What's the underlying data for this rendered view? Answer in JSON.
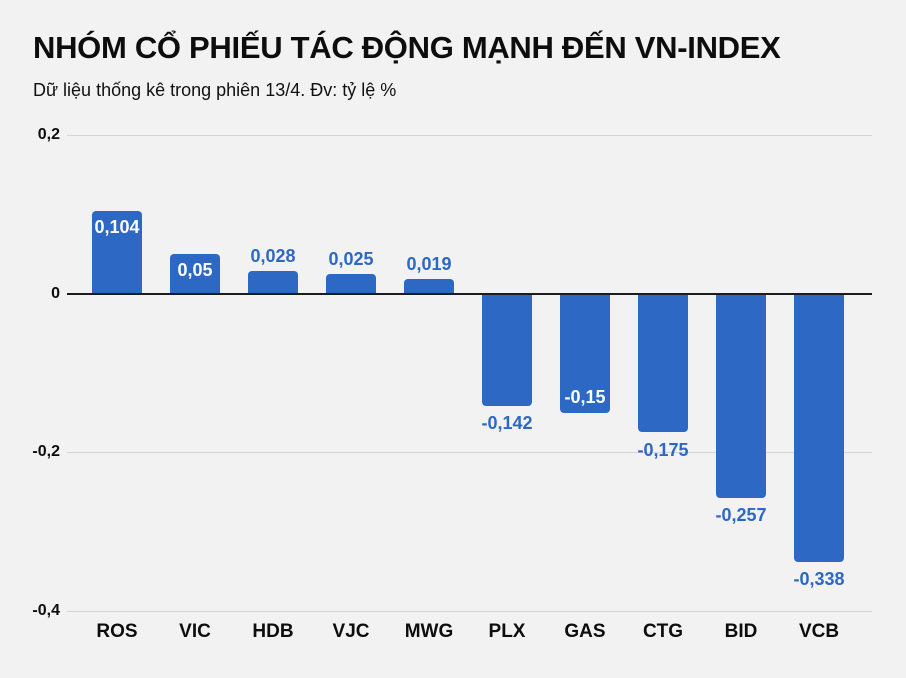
{
  "header": {
    "title": "NHÓM CỔ PHIẾU TÁC ĐỘNG MẠNH ĐẾN VN-INDEX",
    "subtitle": "Dữ liệu thống kê trong phiên 13/4. Đv: tỷ lệ %"
  },
  "colors": {
    "background": "#f2f2f2",
    "bar": "#2d68c5",
    "label_inside": "#ffffff",
    "label_outside": "#2d68c5",
    "gridline": "#d5d5d5",
    "zero_axis": "#1c1c1c",
    "text": "#0d0d0d"
  },
  "chart_data": {
    "type": "bar",
    "title": "NHÓM CỔ PHIẾU TÁC ĐỘNG MẠNH ĐẾN VN-INDEX",
    "subtitle": "Dữ liệu thống kê trong phiên 13/4. Đv: tỷ lệ %",
    "unit": "tỷ lệ %",
    "categories": [
      "ROS",
      "VIC",
      "HDB",
      "VJC",
      "MWG",
      "PLX",
      "GAS",
      "CTG",
      "BID",
      "VCB"
    ],
    "values": [
      0.104,
      0.05,
      0.028,
      0.025,
      0.019,
      -0.142,
      -0.15,
      -0.175,
      -0.257,
      -0.338
    ],
    "value_labels": [
      "0,104",
      "0,05",
      "0,028",
      "0,025",
      "0,019",
      "-0,142",
      "-0,15",
      "-0,175",
      "-0,257",
      "-0,338"
    ],
    "label_placement": [
      "inside",
      "inside",
      "outside",
      "outside",
      "outside",
      "outside",
      "inside",
      "outside",
      "outside",
      "outside"
    ],
    "ylim": [
      -0.4,
      0.2
    ],
    "y_ticks": [
      {
        "value": 0.2,
        "label": "0,2"
      },
      {
        "value": 0,
        "label": "0"
      },
      {
        "value": -0.2,
        "label": "-0,2"
      },
      {
        "value": -0.4,
        "label": "-0,4"
      }
    ],
    "grid": true,
    "legend": false,
    "xlabel": "",
    "ylabel": ""
  }
}
